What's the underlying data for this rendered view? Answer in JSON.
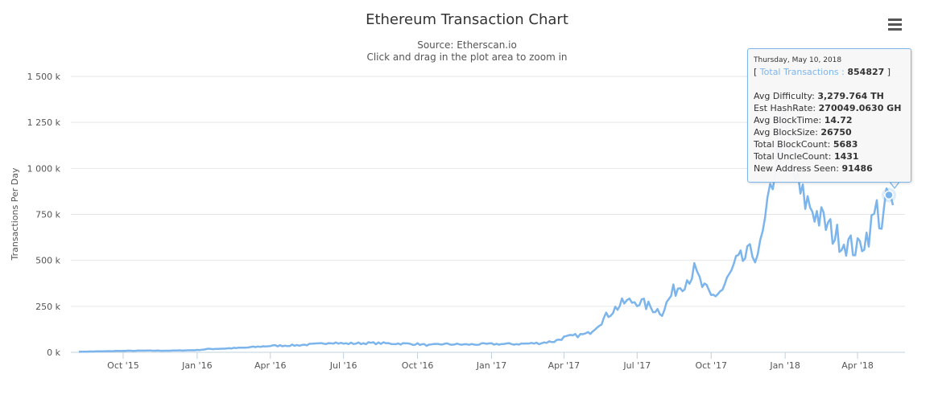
{
  "chart_data": {
    "type": "line",
    "title": "Ethereum Transaction Chart",
    "subtitle_source": "Source: Etherscan.io",
    "subtitle_hint": "Click and drag in the plot area to zoom in",
    "ylabel": "Transactions Per Day",
    "xlabel": "",
    "ylim": [
      0,
      1500000
    ],
    "yticks": [
      {
        "value": 0,
        "label": "0 k"
      },
      {
        "value": 250000,
        "label": "250 k"
      },
      {
        "value": 500000,
        "label": "500 k"
      },
      {
        "value": 750000,
        "label": "750 k"
      },
      {
        "value": 1000000,
        "label": "1 000 k"
      },
      {
        "value": 1250000,
        "label": "1 250 k"
      },
      {
        "value": 1500000,
        "label": "1 500 k"
      }
    ],
    "xticks": [
      "Oct '15",
      "Jan '16",
      "Apr '16",
      "Jul '16",
      "Oct '16",
      "Jan '17",
      "Apr '17",
      "Jul '17",
      "Oct '17",
      "Jan '18",
      "Apr '18"
    ],
    "grid": true,
    "legend": "none",
    "series": [
      {
        "color": "#7cb5ec",
        "x": [
          "2015-08-07",
          "2015-09-01",
          "2015-10-01",
          "2015-11-01",
          "2015-12-01",
          "2016-01-01",
          "2016-01-15",
          "2016-02-01",
          "2016-03-01",
          "2016-04-01",
          "2016-05-01",
          "2016-06-01",
          "2016-06-15",
          "2016-07-01",
          "2016-08-01",
          "2016-09-01",
          "2016-10-01",
          "2016-10-15",
          "2016-11-01",
          "2016-12-01",
          "2017-01-01",
          "2017-02-01",
          "2017-03-01",
          "2017-03-20",
          "2017-04-01",
          "2017-04-15",
          "2017-05-01",
          "2017-05-15",
          "2017-06-01",
          "2017-06-15",
          "2017-07-01",
          "2017-07-15",
          "2017-08-01",
          "2017-08-15",
          "2017-09-01",
          "2017-09-10",
          "2017-09-20",
          "2017-10-01",
          "2017-10-15",
          "2017-11-01",
          "2017-11-15",
          "2017-12-01",
          "2017-12-10",
          "2017-12-20",
          "2018-01-01",
          "2018-01-10",
          "2018-01-20",
          "2018-02-01",
          "2018-02-15",
          "2018-03-01",
          "2018-03-15",
          "2018-04-01",
          "2018-04-15",
          "2018-04-25",
          "2018-05-01",
          "2018-05-10",
          "2018-05-15"
        ],
        "values": [
          3000,
          5000,
          8000,
          9000,
          9000,
          12000,
          18000,
          20000,
          25000,
          35000,
          38000,
          45000,
          55000,
          47000,
          50000,
          48000,
          45000,
          38000,
          45000,
          42000,
          45000,
          45000,
          50000,
          60000,
          80000,
          90000,
          100000,
          160000,
          230000,
          270000,
          280000,
          250000,
          220000,
          330000,
          400000,
          440000,
          360000,
          300000,
          340000,
          480000,
          520000,
          560000,
          760000,
          1050000,
          1230000,
          1000000,
          850000,
          800000,
          720000,
          650000,
          600000,
          560000,
          650000,
          780000,
          700000,
          854827,
          800000
        ]
      }
    ],
    "tooltip": {
      "date": "Thursday, May 10, 2018",
      "series_name": "Total Transactions",
      "series_value": "854827",
      "rows": [
        {
          "label": "Avg Difficulty:",
          "value": "3,279.764 TH"
        },
        {
          "label": "Est HashRate:",
          "value": "270049.0630 GH"
        },
        {
          "label": "Avg BlockTime:",
          "value": "14.72"
        },
        {
          "label": "Avg BlockSize:",
          "value": "26750"
        },
        {
          "label": "Total BlockCount:",
          "value": "5683"
        },
        {
          "label": "Total UncleCount:",
          "value": "1431"
        },
        {
          "label": "New Address Seen:",
          "value": "91486"
        }
      ],
      "highlight_date": "2018-05-10",
      "highlight_value": 854827
    }
  },
  "menu": {
    "icon": "hamburger-menu-icon"
  }
}
